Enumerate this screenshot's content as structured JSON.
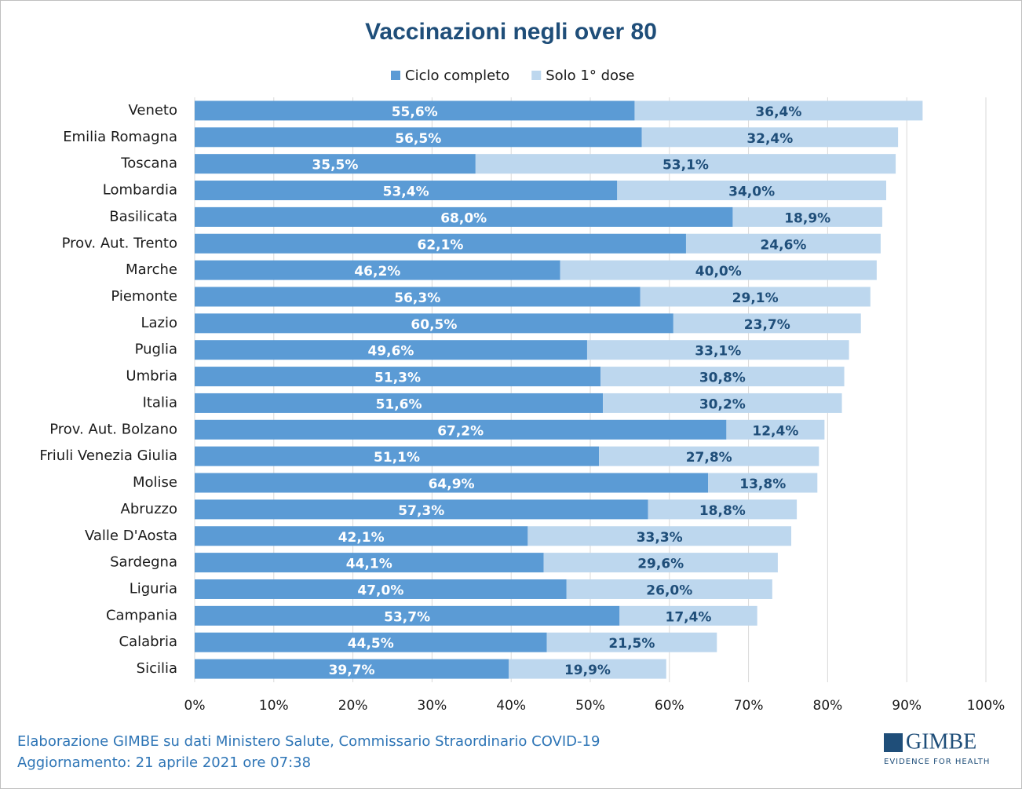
{
  "chart_data": {
    "type": "stacked-barh",
    "title": "Vaccinazioni negli over 80",
    "categories": [
      "Veneto",
      "Emilia Romagna",
      "Toscana",
      "Lombardia",
      "Basilicata",
      "Prov. Aut. Trento",
      "Marche",
      "Piemonte",
      "Lazio",
      "Puglia",
      "Umbria",
      "Italia",
      "Prov. Aut. Bolzano",
      "Friuli Venezia Giulia",
      "Molise",
      "Abruzzo",
      "Valle D'Aosta",
      "Sardegna",
      "Liguria",
      "Campania",
      "Calabria",
      "Sicilia"
    ],
    "series": [
      {
        "name": "Ciclo completo",
        "color": "#5b9bd5",
        "label_color": "#ffffff",
        "values": [
          55.6,
          56.5,
          35.5,
          53.4,
          68.0,
          62.1,
          46.2,
          56.3,
          60.5,
          49.6,
          51.3,
          51.6,
          67.2,
          51.1,
          64.9,
          57.3,
          42.1,
          44.1,
          47.0,
          53.7,
          44.5,
          39.7
        ],
        "value_labels": [
          "55,6%",
          "56,5%",
          "35,5%",
          "53,4%",
          "68,0%",
          "62,1%",
          "46,2%",
          "56,3%",
          "60,5%",
          "49,6%",
          "51,3%",
          "51,6%",
          "67,2%",
          "51,1%",
          "64,9%",
          "57,3%",
          "42,1%",
          "44,1%",
          "47,0%",
          "53,7%",
          "44,5%",
          "39,7%"
        ]
      },
      {
        "name": "Solo 1° dose",
        "color": "#bdd7ee",
        "label_color": "#1f4e79",
        "values": [
          36.4,
          32.4,
          53.1,
          34.0,
          18.9,
          24.6,
          40.0,
          29.1,
          23.7,
          33.1,
          30.8,
          30.2,
          12.4,
          27.8,
          13.8,
          18.8,
          33.3,
          29.6,
          26.0,
          17.4,
          21.5,
          19.9
        ],
        "value_labels": [
          "36,4%",
          "32,4%",
          "53,1%",
          "34,0%",
          "18,9%",
          "24,6%",
          "40,0%",
          "29,1%",
          "23,7%",
          "33,1%",
          "30,8%",
          "30,2%",
          "12,4%",
          "27,8%",
          "13,8%",
          "18,8%",
          "33,3%",
          "29,6%",
          "26,0%",
          "17,4%",
          "21,5%",
          "19,9%"
        ]
      }
    ],
    "xlim": [
      0,
      100
    ],
    "xticks": [
      {
        "value": 0,
        "label": "0%"
      },
      {
        "value": 10,
        "label": "10%"
      },
      {
        "value": 20,
        "label": "20%"
      },
      {
        "value": 30,
        "label": "30%"
      },
      {
        "value": 40,
        "label": "40%"
      },
      {
        "value": 50,
        "label": "50%"
      },
      {
        "value": 60,
        "label": "60%"
      },
      {
        "value": 70,
        "label": "70%"
      },
      {
        "value": 80,
        "label": "80%"
      },
      {
        "value": 90,
        "label": "90%"
      },
      {
        "value": 100,
        "label": "100%"
      }
    ],
    "grid": true,
    "legend": "top",
    "notes": [
      "Elaborazione GIMBE su dati Ministero Salute, Commissario Straordinario COVID-19",
      "Aggiornamento: 21 aprile 2021 ore 07:38"
    ]
  },
  "logo": {
    "name": "GIMBE",
    "tagline": "EVIDENCE FOR HEALTH"
  }
}
